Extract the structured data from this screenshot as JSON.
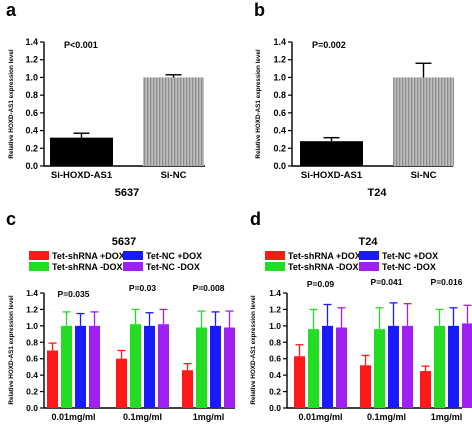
{
  "panels": [
    {
      "letter": "a",
      "p_text": "P<0.001",
      "subtitle": "5637"
    },
    {
      "letter": "b",
      "p_text": "P=0.002",
      "subtitle": "T24"
    },
    {
      "letter": "c",
      "title": "5637"
    },
    {
      "letter": "d",
      "title": "T24"
    }
  ],
  "colors": {
    "black": "#000000",
    "gray": "#a8a8a8",
    "red": "#ff1a1a",
    "green": "#22dd22",
    "blue": "#1a1aff",
    "purple": "#a020f0"
  },
  "chart_data": [
    {
      "type": "bar",
      "ylabel": "Relative HOXD-AS1 expression level",
      "ylim": [
        0,
        1.4
      ],
      "yticks": [
        "0.0",
        "0.2",
        "0.4",
        "0.6",
        "0.8",
        "1.0",
        "1.2",
        "1.4"
      ],
      "categories": [
        "Si-HOXD-AS1",
        "Si-NC"
      ],
      "values": [
        0.32,
        1.0
      ],
      "errors": [
        0.05,
        0.03
      ],
      "bar_styles": [
        "solid-black",
        "gray-striped"
      ],
      "annotations": [
        "P<0.001"
      ],
      "subtitle": "5637"
    },
    {
      "type": "bar",
      "ylabel": "Relative HOXD-AS1 expression level",
      "ylim": [
        0,
        1.4
      ],
      "yticks": [
        "0.0",
        "0.2",
        "0.4",
        "0.6",
        "0.8",
        "1.0",
        "1.2",
        "1.4"
      ],
      "categories": [
        "Si-HOXD-AS1",
        "Si-NC"
      ],
      "values": [
        0.28,
        1.0
      ],
      "errors": [
        0.04,
        0.16
      ],
      "bar_styles": [
        "solid-black",
        "gray-striped"
      ],
      "annotations": [
        "P=0.002"
      ],
      "subtitle": "T24"
    },
    {
      "type": "bar",
      "title": "5637",
      "ylabel": "Relative HOXD-AS1 expression level",
      "ylim": [
        0,
        1.4
      ],
      "yticks": [
        "0.0",
        "0.2",
        "0.4",
        "0.6",
        "0.8",
        "1.0",
        "1.2",
        "1.4"
      ],
      "categories": [
        "0.01mg/ml",
        "0.1mg/ml",
        "1mg/ml"
      ],
      "p_values": [
        "P=0.035",
        "P=0.03",
        "P=0.008"
      ],
      "series": [
        {
          "name": "Tet-shRNA +DOX",
          "color": "#ff1a1a",
          "values": [
            0.7,
            0.6,
            0.46
          ],
          "errors": [
            0.09,
            0.1,
            0.08
          ]
        },
        {
          "name": "Tet-shRNA -DOX",
          "color": "#22dd22",
          "values": [
            1.0,
            1.02,
            0.98
          ],
          "errors": [
            0.17,
            0.18,
            0.2
          ]
        },
        {
          "name": "Tet-NC +DOX",
          "color": "#1a1aff",
          "values": [
            1.0,
            1.0,
            1.0
          ],
          "errors": [
            0.15,
            0.16,
            0.17
          ]
        },
        {
          "name": "Tet-NC -DOX",
          "color": "#a020f0",
          "values": [
            1.0,
            1.02,
            0.98
          ],
          "errors": [
            0.17,
            0.18,
            0.2
          ]
        }
      ],
      "legend_position": "top"
    },
    {
      "type": "bar",
      "title": "T24",
      "ylabel": "Relative HOXD-AS1 expression level",
      "ylim": [
        0,
        1.4
      ],
      "yticks": [
        "0.0",
        "0.2",
        "0.4",
        "0.6",
        "0.8",
        "1.0",
        "1.2",
        "1.4"
      ],
      "categories": [
        "0.01mg/ml",
        "0.1mg/ml",
        "1mg/ml"
      ],
      "p_values": [
        "P=0.09",
        "P=0.041",
        "P=0.016"
      ],
      "series": [
        {
          "name": "Tet-shRNA +DOX",
          "color": "#ff1a1a",
          "values": [
            0.63,
            0.52,
            0.45
          ],
          "errors": [
            0.14,
            0.12,
            0.06
          ]
        },
        {
          "name": "Tet-shRNA -DOX",
          "color": "#22dd22",
          "values": [
            0.96,
            0.96,
            1.0
          ],
          "errors": [
            0.24,
            0.26,
            0.2
          ]
        },
        {
          "name": "Tet-NC +DOX",
          "color": "#1a1aff",
          "values": [
            1.0,
            1.0,
            1.0
          ],
          "errors": [
            0.26,
            0.28,
            0.22
          ]
        },
        {
          "name": "Tet-NC -DOX",
          "color": "#a020f0",
          "values": [
            0.98,
            1.0,
            1.03
          ],
          "errors": [
            0.24,
            0.27,
            0.22
          ]
        }
      ],
      "legend_position": "top"
    }
  ]
}
